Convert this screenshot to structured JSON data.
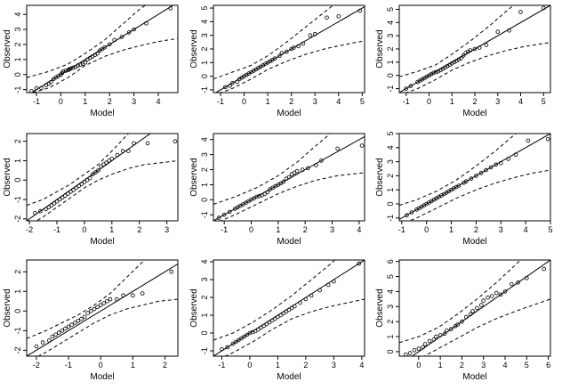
{
  "figure": {
    "description_free": true,
    "rows": 3,
    "cols": 3
  },
  "chart_data": [
    {
      "type": "scatter",
      "title": "",
      "xlabel": "Model",
      "ylabel": "Observed",
      "xlim": [
        -1.4,
        4.8
      ],
      "ylim": [
        -1.2,
        4.6
      ],
      "xticks": [
        -1,
        0,
        1,
        2,
        3,
        4
      ],
      "yticks": [
        -1,
        0,
        1,
        2,
        3,
        4
      ],
      "reference_line": {
        "slope": 1,
        "intercept": 0
      },
      "band": {
        "x": [
          -1.4,
          -0.5,
          0.3,
          1.0,
          1.8,
          2.5,
          3.2,
          4.0,
          4.8
        ],
        "lower": [
          -1.3,
          -0.9,
          -0.2,
          0.6,
          1.2,
          1.6,
          1.9,
          2.2,
          2.4
        ],
        "upper": [
          -0.2,
          0.2,
          0.7,
          1.4,
          2.3,
          3.3,
          4.3,
          5.2,
          6.0
        ]
      },
      "x": [
        -1.2,
        -1.0,
        -0.8,
        -0.6,
        -0.5,
        -0.4,
        -0.3,
        -0.2,
        -0.1,
        0.0,
        0.05,
        0.1,
        0.2,
        0.3,
        0.35,
        0.4,
        0.5,
        0.6,
        0.7,
        0.8,
        0.9,
        1.0,
        1.1,
        1.2,
        1.3,
        1.4,
        1.5,
        1.6,
        1.7,
        1.8,
        2.0,
        2.2,
        2.5,
        2.8,
        3.0,
        3.5,
        4.5
      ],
      "y": [
        -1.1,
        -0.9,
        -0.9,
        -0.7,
        -0.6,
        -0.5,
        -0.3,
        -0.2,
        -0.1,
        0.0,
        0.1,
        0.2,
        0.25,
        0.3,
        0.35,
        0.4,
        0.45,
        0.5,
        0.6,
        0.65,
        0.7,
        0.8,
        1.0,
        1.1,
        1.2,
        1.3,
        1.4,
        1.6,
        1.7,
        1.8,
        2.0,
        2.3,
        2.5,
        2.8,
        3.0,
        3.4,
        4.4
      ]
    },
    {
      "type": "scatter",
      "title": "",
      "xlabel": "Model",
      "ylabel": "Observed",
      "xlim": [
        -1.3,
        5.1
      ],
      "ylim": [
        -1.2,
        5.2
      ],
      "xticks": [
        -1,
        0,
        1,
        2,
        3,
        4,
        5
      ],
      "yticks": [
        -1,
        0,
        1,
        2,
        3,
        4,
        5
      ],
      "reference_line": {
        "slope": 1,
        "intercept": 0
      },
      "band": {
        "x": [
          -1.3,
          -0.5,
          0.3,
          1.0,
          1.8,
          2.6,
          3.4,
          4.2,
          5.1
        ],
        "lower": [
          -1.4,
          -0.9,
          -0.2,
          0.5,
          1.1,
          1.6,
          2.0,
          2.3,
          2.6
        ],
        "upper": [
          -0.2,
          0.3,
          0.8,
          1.5,
          2.5,
          3.6,
          4.7,
          5.8,
          6.8
        ]
      },
      "x": [
        -0.8,
        -0.6,
        -0.5,
        -0.3,
        -0.2,
        -0.1,
        0.0,
        0.1,
        0.2,
        0.3,
        0.4,
        0.5,
        0.6,
        0.7,
        0.8,
        0.9,
        1.0,
        1.1,
        1.2,
        1.3,
        1.5,
        1.6,
        1.8,
        2.0,
        2.1,
        2.3,
        2.5,
        2.8,
        3.0,
        3.5,
        4.0,
        4.9
      ],
      "y": [
        -0.8,
        -0.7,
        -0.5,
        -0.4,
        -0.2,
        -0.1,
        0.0,
        0.1,
        0.2,
        0.3,
        0.4,
        0.5,
        0.6,
        0.7,
        0.8,
        0.9,
        1.0,
        1.1,
        1.2,
        1.3,
        1.5,
        1.7,
        1.8,
        2.0,
        2.1,
        2.2,
        2.4,
        3.0,
        3.1,
        4.3,
        4.4,
        4.8
      ]
    },
    {
      "type": "scatter",
      "title": "",
      "xlabel": "Model",
      "ylabel": "Observed",
      "xlim": [
        -1.3,
        5.3
      ],
      "ylim": [
        -1.3,
        5.3
      ],
      "xticks": [
        -1,
        0,
        1,
        2,
        3,
        4,
        5
      ],
      "yticks": [
        -1,
        0,
        1,
        2,
        3,
        4,
        5
      ],
      "reference_line": {
        "slope": 1,
        "intercept": 0
      },
      "band": {
        "x": [
          -1.3,
          -0.5,
          0.3,
          1.0,
          1.8,
          2.6,
          3.4,
          4.2,
          5.3
        ],
        "lower": [
          -1.5,
          -1.0,
          -0.3,
          0.4,
          1.0,
          1.5,
          1.9,
          2.2,
          2.5
        ],
        "upper": [
          -0.1,
          0.3,
          0.8,
          1.6,
          2.6,
          3.7,
          4.9,
          6.0,
          7.2
        ]
      },
      "x": [
        -1.0,
        -0.8,
        -0.5,
        -0.4,
        -0.3,
        -0.2,
        -0.1,
        0.0,
        0.1,
        0.2,
        0.3,
        0.4,
        0.5,
        0.6,
        0.7,
        0.8,
        0.9,
        1.0,
        1.1,
        1.2,
        1.3,
        1.4,
        1.5,
        1.6,
        1.7,
        1.8,
        2.0,
        2.2,
        2.5,
        3.0,
        3.5,
        4.0,
        5.0
      ],
      "y": [
        -1.0,
        -0.8,
        -0.5,
        -0.4,
        -0.3,
        -0.2,
        -0.1,
        0.0,
        0.1,
        0.2,
        0.25,
        0.3,
        0.4,
        0.5,
        0.6,
        0.7,
        0.8,
        0.9,
        1.0,
        1.1,
        1.2,
        1.3,
        1.5,
        1.7,
        1.8,
        1.9,
        2.0,
        2.1,
        2.3,
        3.3,
        3.4,
        4.8,
        5.1
      ]
    },
    {
      "type": "scatter",
      "title": "",
      "xlabel": "Model",
      "ylabel": "Observed",
      "xlim": [
        -2.1,
        3.4
      ],
      "ylim": [
        -2.1,
        2.4
      ],
      "xticks": [
        -2,
        -1,
        0,
        1,
        2,
        3
      ],
      "yticks": [
        -2,
        -1,
        0,
        1,
        2
      ],
      "reference_line": {
        "slope": 1,
        "intercept": 0
      },
      "band": {
        "x": [
          -2.1,
          -1.5,
          -1.0,
          -0.5,
          0.0,
          0.5,
          1.0,
          1.6,
          2.2,
          2.8,
          3.4
        ],
        "lower": [
          -2.4,
          -1.9,
          -1.4,
          -0.9,
          -0.4,
          0.0,
          0.3,
          0.6,
          0.8,
          0.9,
          1.0
        ],
        "upper": [
          -1.3,
          -1.0,
          -0.6,
          -0.2,
          0.3,
          0.8,
          1.5,
          2.4,
          3.5,
          4.6,
          5.8
        ]
      },
      "x": [
        -1.8,
        -1.6,
        -1.4,
        -1.3,
        -1.2,
        -1.1,
        -1.0,
        -0.9,
        -0.8,
        -0.7,
        -0.6,
        -0.5,
        -0.4,
        -0.3,
        -0.2,
        -0.1,
        0.0,
        0.1,
        0.2,
        0.3,
        0.4,
        0.5,
        0.6,
        0.7,
        0.8,
        0.9,
        1.0,
        1.2,
        1.4,
        1.6,
        1.8,
        2.3,
        3.3
      ],
      "y": [
        -1.7,
        -1.6,
        -1.5,
        -1.4,
        -1.3,
        -1.2,
        -1.1,
        -1.0,
        -0.9,
        -0.8,
        -0.7,
        -0.6,
        -0.5,
        -0.4,
        -0.3,
        -0.2,
        -0.1,
        0.0,
        0.1,
        0.3,
        0.4,
        0.5,
        0.7,
        0.8,
        0.9,
        1.0,
        1.1,
        1.3,
        1.5,
        1.5,
        1.9,
        1.9,
        2.0
      ]
    },
    {
      "type": "scatter",
      "title": "",
      "xlabel": "Model",
      "ylabel": "Observed",
      "xlim": [
        -1.4,
        4.2
      ],
      "ylim": [
        -1.4,
        4.4
      ],
      "xticks": [
        -1,
        0,
        1,
        2,
        3,
        4
      ],
      "yticks": [
        -1,
        0,
        1,
        2,
        3,
        4
      ],
      "reference_line": {
        "slope": 1,
        "intercept": 0
      },
      "band": {
        "x": [
          -1.4,
          -0.6,
          0.2,
          1.0,
          1.7,
          2.4,
          3.2,
          4.2
        ],
        "lower": [
          -1.6,
          -1.0,
          -0.3,
          0.4,
          0.9,
          1.3,
          1.6,
          1.8
        ],
        "upper": [
          -0.3,
          0.2,
          0.8,
          1.6,
          2.5,
          3.6,
          4.8,
          6.2
        ]
      },
      "x": [
        -1.2,
        -1.0,
        -0.8,
        -0.6,
        -0.5,
        -0.4,
        -0.3,
        -0.2,
        -0.1,
        0.0,
        0.1,
        0.2,
        0.3,
        0.4,
        0.5,
        0.6,
        0.7,
        0.8,
        0.9,
        1.0,
        1.1,
        1.2,
        1.3,
        1.4,
        1.5,
        1.6,
        1.7,
        1.9,
        2.1,
        2.4,
        2.6,
        3.2,
        4.1
      ],
      "y": [
        -1.2,
        -1.0,
        -0.8,
        -0.6,
        -0.5,
        -0.4,
        -0.3,
        -0.2,
        -0.1,
        0.0,
        0.1,
        0.2,
        0.25,
        0.3,
        0.4,
        0.5,
        0.7,
        0.8,
        0.9,
        1.0,
        1.1,
        1.2,
        1.4,
        1.5,
        1.7,
        1.8,
        1.9,
        2.0,
        2.1,
        2.3,
        2.6,
        3.4,
        3.6
      ]
    },
    {
      "type": "scatter",
      "title": "",
      "xlabel": "Model",
      "ylabel": "Observed",
      "xlim": [
        -1.1,
        5.0
      ],
      "ylim": [
        -1.2,
        5.0
      ],
      "xticks": [
        -1,
        0,
        1,
        2,
        3,
        4,
        5
      ],
      "yticks": [
        -1,
        0,
        1,
        2,
        3,
        4,
        5
      ],
      "reference_line": {
        "slope": 1,
        "intercept": 0
      },
      "band": {
        "x": [
          -1.1,
          -0.4,
          0.4,
          1.2,
          2.0,
          2.8,
          3.6,
          4.3,
          5.0
        ],
        "lower": [
          -1.5,
          -1.0,
          -0.3,
          0.4,
          1.0,
          1.5,
          1.9,
          2.2,
          2.4
        ],
        "upper": [
          -0.1,
          0.3,
          0.9,
          1.7,
          2.7,
          3.8,
          5.0,
          6.1,
          7.2
        ]
      },
      "x": [
        -0.8,
        -0.6,
        -0.4,
        -0.3,
        -0.2,
        -0.1,
        0.0,
        0.1,
        0.2,
        0.3,
        0.4,
        0.5,
        0.6,
        0.7,
        0.8,
        0.9,
        1.0,
        1.1,
        1.2,
        1.3,
        1.5,
        1.6,
        1.8,
        2.0,
        2.2,
        2.4,
        2.6,
        2.8,
        3.0,
        3.3,
        3.6,
        4.1,
        4.9
      ],
      "y": [
        -0.8,
        -0.6,
        -0.4,
        -0.3,
        -0.2,
        -0.1,
        0.0,
        0.1,
        0.2,
        0.3,
        0.4,
        0.5,
        0.6,
        0.7,
        0.8,
        0.9,
        1.0,
        1.1,
        1.2,
        1.3,
        1.5,
        1.6,
        1.8,
        2.0,
        2.2,
        2.4,
        2.6,
        2.8,
        2.9,
        3.2,
        3.5,
        4.5,
        4.6
      ]
    },
    {
      "type": "scatter",
      "title": "",
      "xlabel": "Model",
      "ylabel": "Observed",
      "xlim": [
        -2.3,
        2.4
      ],
      "ylim": [
        -2.3,
        2.6
      ],
      "xticks": [
        -2,
        -1,
        0,
        1,
        2
      ],
      "yticks": [
        -2,
        -1,
        0,
        1,
        2
      ],
      "reference_line": {
        "slope": 1,
        "intercept": 0
      },
      "band": {
        "x": [
          -2.3,
          -1.7,
          -1.2,
          -0.7,
          -0.2,
          0.3,
          0.8,
          1.3,
          1.8,
          2.4
        ],
        "lower": [
          -2.6,
          -2.1,
          -1.6,
          -1.1,
          -0.6,
          -0.2,
          0.1,
          0.3,
          0.5,
          0.6
        ],
        "upper": [
          -1.4,
          -1.0,
          -0.6,
          -0.2,
          0.3,
          0.9,
          1.7,
          2.5,
          3.4,
          4.5
        ]
      },
      "x": [
        -2.0,
        -1.8,
        -1.6,
        -1.5,
        -1.4,
        -1.3,
        -1.2,
        -1.1,
        -1.0,
        -0.9,
        -0.8,
        -0.7,
        -0.6,
        -0.5,
        -0.4,
        -0.3,
        -0.2,
        -0.1,
        0.0,
        0.1,
        0.2,
        0.3,
        0.5,
        0.7,
        1.0,
        1.3,
        2.2
      ],
      "y": [
        -1.8,
        -1.6,
        -1.5,
        -1.3,
        -1.2,
        -1.1,
        -1.0,
        -0.9,
        -0.8,
        -0.7,
        -0.6,
        -0.5,
        -0.4,
        -0.3,
        -0.1,
        0.0,
        0.1,
        0.2,
        0.3,
        0.4,
        0.5,
        0.6,
        0.6,
        0.8,
        0.8,
        0.9,
        2.0
      ]
    },
    {
      "type": "scatter",
      "title": "",
      "xlabel": "Model",
      "ylabel": "Observed",
      "xlim": [
        -1.3,
        4.1
      ],
      "ylim": [
        -1.3,
        4.1
      ],
      "xticks": [
        -1,
        0,
        1,
        2,
        3,
        4
      ],
      "yticks": [
        -1,
        0,
        1,
        2,
        3,
        4
      ],
      "reference_line": {
        "slope": 1,
        "intercept": 0
      },
      "band": {
        "x": [
          -1.3,
          -0.6,
          0.1,
          0.8,
          1.5,
          2.2,
          2.9,
          3.5,
          4.1
        ],
        "lower": [
          -1.6,
          -1.1,
          -0.5,
          0.2,
          0.8,
          1.2,
          1.5,
          1.7,
          1.9
        ],
        "upper": [
          -0.4,
          0.0,
          0.6,
          1.3,
          2.1,
          3.0,
          3.9,
          4.8,
          5.6
        ]
      },
      "x": [
        -1.0,
        -0.8,
        -0.6,
        -0.5,
        -0.4,
        -0.3,
        -0.2,
        -0.1,
        0.0,
        0.1,
        0.2,
        0.3,
        0.4,
        0.5,
        0.6,
        0.7,
        0.8,
        0.9,
        1.0,
        1.1,
        1.2,
        1.3,
        1.4,
        1.5,
        1.6,
        1.8,
        2.0,
        2.2,
        2.5,
        2.8,
        3.0,
        3.9
      ],
      "y": [
        -0.9,
        -0.8,
        -0.6,
        -0.5,
        -0.4,
        -0.3,
        -0.2,
        -0.1,
        0.0,
        0.05,
        0.1,
        0.2,
        0.3,
        0.4,
        0.5,
        0.6,
        0.7,
        0.8,
        0.9,
        1.0,
        1.1,
        1.2,
        1.3,
        1.4,
        1.5,
        1.7,
        1.9,
        2.1,
        2.4,
        2.7,
        2.9,
        3.9
      ]
    },
    {
      "type": "scatter",
      "title": "",
      "xlabel": "Model",
      "ylabel": "Observed",
      "xlim": [
        -0.9,
        6.1
      ],
      "ylim": [
        -0.3,
        6.1
      ],
      "xticks": [
        0,
        1,
        2,
        3,
        4,
        5,
        6
      ],
      "yticks": [
        0,
        1,
        2,
        3,
        4,
        5,
        6
      ],
      "reference_line": {
        "slope": 1,
        "intercept": 0
      },
      "band": {
        "x": [
          -0.9,
          0.0,
          0.9,
          1.8,
          2.7,
          3.6,
          4.5,
          5.3,
          6.1
        ],
        "lower": [
          -1.0,
          -0.5,
          0.2,
          0.9,
          1.6,
          2.2,
          2.7,
          3.1,
          3.5
        ],
        "upper": [
          0.6,
          1.0,
          1.6,
          2.5,
          3.5,
          4.6,
          5.8,
          7.0,
          8.1
        ]
      },
      "x": [
        -0.6,
        -0.4,
        -0.2,
        0.0,
        0.2,
        0.3,
        0.5,
        0.7,
        0.8,
        1.0,
        1.2,
        1.3,
        1.5,
        1.7,
        1.8,
        2.0,
        2.2,
        2.4,
        2.5,
        2.7,
        2.9,
        3.0,
        3.2,
        3.4,
        3.6,
        3.8,
        4.0,
        4.3,
        4.6,
        5.0,
        5.8
      ],
      "y": [
        -0.2,
        -0.1,
        0.1,
        0.2,
        0.3,
        0.5,
        0.7,
        0.8,
        1.0,
        1.1,
        1.2,
        1.4,
        1.5,
        1.7,
        1.8,
        2.0,
        2.3,
        2.5,
        2.7,
        2.9,
        3.1,
        3.4,
        3.6,
        3.7,
        3.9,
        3.8,
        4.0,
        4.5,
        4.6,
        4.9,
        5.5
      ]
    }
  ]
}
